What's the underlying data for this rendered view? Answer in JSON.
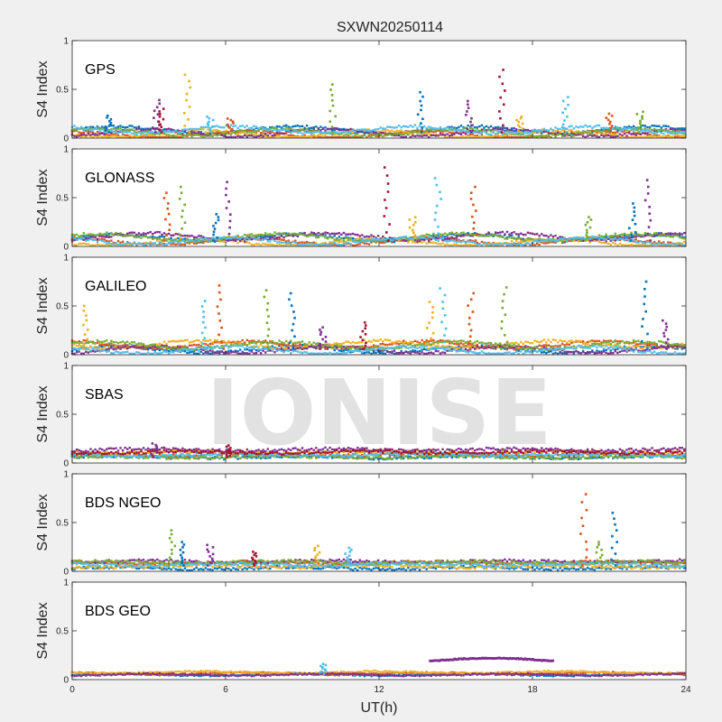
{
  "figure": {
    "title": "SXWN20250114",
    "watermark": "IONISE",
    "background": "#f0f0f0"
  },
  "chart_data": {
    "type": "scatter",
    "x_axis": {
      "label": "UT(h)",
      "range": [
        0,
        24
      ],
      "ticks": [
        0,
        6,
        12,
        18,
        24
      ],
      "tick_labels": [
        "0",
        "6",
        "12",
        "18",
        "24"
      ]
    },
    "y_axis": {
      "label": "S4 Index",
      "range": [
        0,
        1
      ],
      "ticks": [
        0,
        0.5,
        1
      ],
      "tick_labels": [
        "0",
        "0.5",
        "1"
      ]
    },
    "grid": false,
    "series_colors": [
      "#0072bd",
      "#d95319",
      "#edb120",
      "#7e2f8e",
      "#77ac30",
      "#4dbeee",
      "#a2142f"
    ],
    "panels": [
      {
        "name": "GPS",
        "spikes": [
          {
            "x": 1.4,
            "y": 0.23
          },
          {
            "x": 3.3,
            "y": 0.39
          },
          {
            "x": 3.5,
            "y": 0.3
          },
          {
            "x": 4.5,
            "y": 0.65
          },
          {
            "x": 5.4,
            "y": 0.22
          },
          {
            "x": 6.2,
            "y": 0.2
          },
          {
            "x": 10.2,
            "y": 0.55
          },
          {
            "x": 13.6,
            "y": 0.47
          },
          {
            "x": 15.5,
            "y": 0.38
          },
          {
            "x": 16.8,
            "y": 0.7
          },
          {
            "x": 17.5,
            "y": 0.22
          },
          {
            "x": 19.3,
            "y": 0.42
          },
          {
            "x": 21.0,
            "y": 0.25
          },
          {
            "x": 22.2,
            "y": 0.27
          }
        ]
      },
      {
        "name": "GLONASS",
        "spikes": [
          {
            "x": 3.7,
            "y": 0.55
          },
          {
            "x": 4.3,
            "y": 0.61
          },
          {
            "x": 5.6,
            "y": 0.33
          },
          {
            "x": 6.1,
            "y": 0.66
          },
          {
            "x": 12.3,
            "y": 0.81
          },
          {
            "x": 13.3,
            "y": 0.3
          },
          {
            "x": 14.3,
            "y": 0.7
          },
          {
            "x": 15.7,
            "y": 0.61
          },
          {
            "x": 20.2,
            "y": 0.3
          },
          {
            "x": 21.9,
            "y": 0.44
          },
          {
            "x": 22.5,
            "y": 0.68
          }
        ]
      },
      {
        "name": "GALILEO",
        "spikes": [
          {
            "x": 0.5,
            "y": 0.5
          },
          {
            "x": 5.2,
            "y": 0.55
          },
          {
            "x": 5.8,
            "y": 0.71
          },
          {
            "x": 7.6,
            "y": 0.66
          },
          {
            "x": 8.6,
            "y": 0.63
          },
          {
            "x": 9.8,
            "y": 0.28
          },
          {
            "x": 11.4,
            "y": 0.33
          },
          {
            "x": 14.0,
            "y": 0.54
          },
          {
            "x": 14.5,
            "y": 0.68
          },
          {
            "x": 15.6,
            "y": 0.63
          },
          {
            "x": 16.9,
            "y": 0.69
          },
          {
            "x": 22.4,
            "y": 0.75
          },
          {
            "x": 23.2,
            "y": 0.35
          }
        ]
      },
      {
        "name": "SBAS",
        "spikes": [
          {
            "x": 3.2,
            "y": 0.2
          },
          {
            "x": 6.1,
            "y": 0.18
          }
        ]
      },
      {
        "name": "BDS NGEO",
        "spikes": [
          {
            "x": 3.9,
            "y": 0.42
          },
          {
            "x": 4.3,
            "y": 0.3
          },
          {
            "x": 5.4,
            "y": 0.27
          },
          {
            "x": 7.1,
            "y": 0.2
          },
          {
            "x": 9.6,
            "y": 0.26
          },
          {
            "x": 10.8,
            "y": 0.24
          },
          {
            "x": 20.0,
            "y": 0.79
          },
          {
            "x": 20.6,
            "y": 0.3
          },
          {
            "x": 21.2,
            "y": 0.6
          }
        ]
      },
      {
        "name": "BDS GEO",
        "spikes": [
          {
            "x": 9.8,
            "y": 0.16
          }
        ],
        "arc": {
          "x": [
            14.0,
            18.8
          ],
          "y": 0.22
        }
      }
    ]
  }
}
